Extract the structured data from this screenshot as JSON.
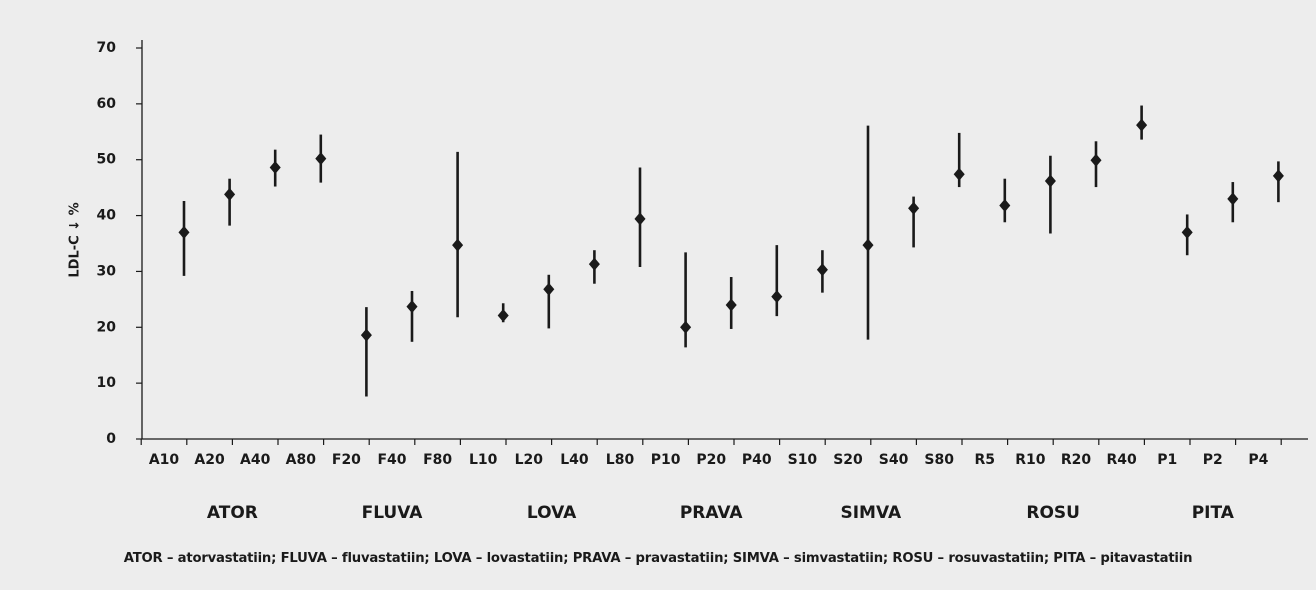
{
  "chart_data": {
    "type": "scatter",
    "ylabel": "LDL-C ↓ %",
    "ylim": [
      0,
      70
    ],
    "yticks": [
      "0",
      "10",
      "20",
      "30",
      "40",
      "50",
      "60",
      "70"
    ],
    "categories": [
      "A10",
      "A20",
      "A40",
      "A80",
      "F20",
      "F40",
      "F80",
      "L10",
      "L20",
      "L40",
      "L80",
      "P10",
      "P20",
      "P40",
      "S10",
      "S20",
      "S40",
      "S80",
      "R5",
      "R10",
      "R20",
      "R40",
      "P1",
      "P2",
      "P4"
    ],
    "values": [
      37,
      43.8,
      48.6,
      50.2,
      18.6,
      23.7,
      34.7,
      22.1,
      26.8,
      31.3,
      39.4,
      20,
      24,
      25.5,
      30.3,
      34.7,
      41.3,
      47.4,
      41.8,
      46.2,
      49.9,
      56.2,
      37,
      43,
      47.1
    ],
    "low": [
      29.2,
      38.2,
      45.2,
      45.9,
      7.6,
      17.4,
      21.8,
      20.9,
      19.8,
      27.8,
      30.8,
      16.4,
      19.7,
      22,
      26.2,
      17.8,
      34.3,
      45.1,
      38.8,
      36.8,
      45.1,
      53.6,
      32.9,
      38.8,
      42.4
    ],
    "high": [
      42.6,
      46.6,
      51.8,
      54.5,
      23.6,
      26.5,
      51.4,
      24.3,
      29.4,
      33.8,
      48.6,
      33.4,
      29,
      34.7,
      33.8,
      56.1,
      43.4,
      54.8,
      46.6,
      50.7,
      53.3,
      59.7,
      40.2,
      46,
      49.7
    ],
    "groups": [
      {
        "label": "ATOR",
        "categories": [
          "A10",
          "A20",
          "A40",
          "A80"
        ]
      },
      {
        "label": "FLUVA",
        "categories": [
          "F20",
          "F40",
          "F80"
        ]
      },
      {
        "label": "LOVA",
        "categories": [
          "L10",
          "L20",
          "L40",
          "L80"
        ]
      },
      {
        "label": "PRAVA",
        "categories": [
          "P10",
          "P20",
          "P40"
        ]
      },
      {
        "label": "SIMVA",
        "categories": [
          "S10",
          "S20",
          "S40",
          "S80"
        ]
      },
      {
        "label": "ROSU",
        "categories": [
          "R5",
          "R10",
          "R20",
          "R40"
        ]
      },
      {
        "label": "PITA",
        "categories": [
          "P1",
          "P2",
          "P4"
        ]
      }
    ],
    "grid": false,
    "legend": "none",
    "colors": {
      "marker": "#1a1a1a",
      "panel": "#ededed"
    }
  },
  "footnote": "ATOR – atorvastatiin; FLUVA – fluvastatiin; LOVA – lovastatiin; PRAVA – pravastatiin; SIMVA – simvastatiin; ROSU – rosuvastatiin; PITA – pitavastatiin"
}
